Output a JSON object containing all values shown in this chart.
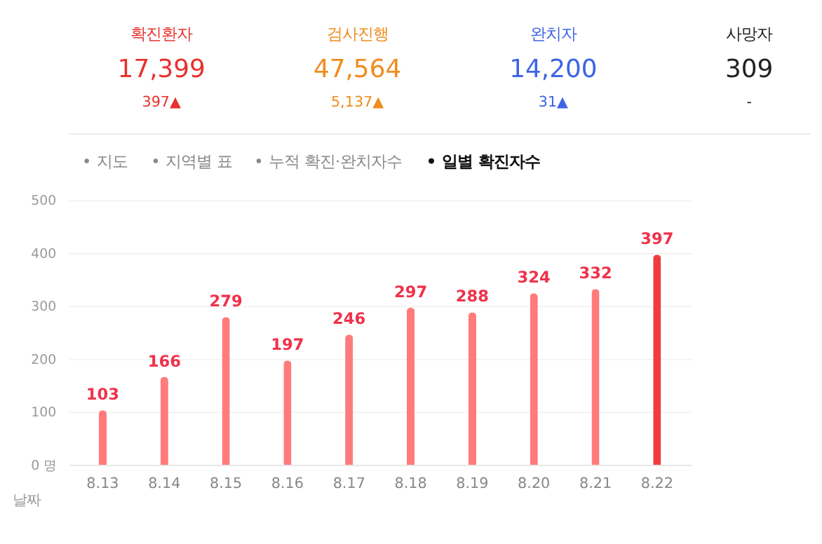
{
  "chart_data": [
    {
      "type": "other",
      "annotations": [
        "확진환자",
        "17,399",
        "397▲",
        "검사진행",
        "47,564",
        "5,137▲",
        "완치자",
        "14,200",
        "31▲",
        "사망자",
        "309",
        "-",
        "• 지도",
        "• 지역별 표",
        "• 누적 확진·완치자수",
        "• 일별 확진자수"
      ]
    },
    {
      "type": "bar",
      "xlabel": "날짜",
      "categories": [
        "8.13",
        "8.14",
        "8.15",
        "8.16",
        "8.17",
        "8.18",
        "8.19",
        "8.20",
        "8.21",
        "8.22"
      ],
      "values": [
        103,
        166,
        279,
        197,
        246,
        297,
        288,
        324,
        332,
        397
      ],
      "colors": [
        "#ff7b7b",
        "#ff7b7b",
        "#ff7b7b",
        "#ff7b7b",
        "#ff7b7b",
        "#ff7b7b",
        "#ff7b7b",
        "#ff7b7b",
        "#ff7b7b",
        "#f03c3c"
      ],
      "ylim": [
        0,
        500
      ],
      "yticks": [
        {
          "value": 0,
          "label": "0 명"
        },
        100,
        200,
        300,
        400,
        500
      ],
      "grid": "y",
      "data_labels": true
    }
  ]
}
